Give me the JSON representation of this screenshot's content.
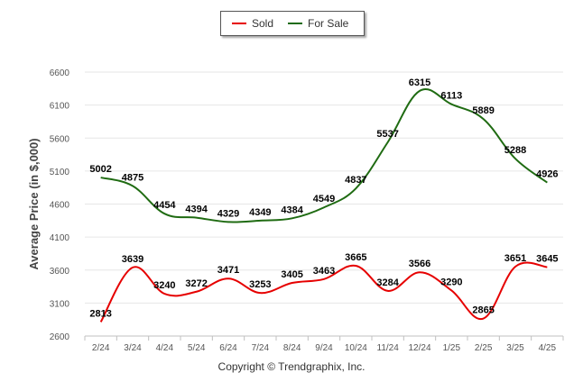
{
  "chart_data": {
    "type": "line",
    "title": "",
    "xlabel": "",
    "ylabel": "Average Price (in $,000)",
    "categories": [
      "2/24",
      "3/24",
      "4/24",
      "5/24",
      "6/24",
      "7/24",
      "8/24",
      "9/24",
      "10/24",
      "11/24",
      "12/24",
      "1/25",
      "2/25",
      "3/25",
      "4/25"
    ],
    "series": [
      {
        "name": "Sold",
        "color": "#e60000",
        "values": [
          2813,
          3639,
          3240,
          3272,
          3471,
          3253,
          3405,
          3463,
          3665,
          3284,
          3566,
          3290,
          2865,
          3651,
          3645
        ]
      },
      {
        "name": "For Sale",
        "color": "#1f6b12",
        "values": [
          5002,
          4875,
          4454,
          4394,
          4329,
          4349,
          4384,
          4549,
          4837,
          5537,
          6315,
          6113,
          5889,
          5288,
          4926
        ]
      }
    ],
    "y_ticks": [
      2600,
      3100,
      3600,
      4100,
      4600,
      5100,
      5600,
      6100,
      6600
    ],
    "ylim": [
      2600,
      6600
    ],
    "grid": true,
    "legend_position": "top-center"
  },
  "legend": {
    "sold_label": "Sold",
    "for_sale_label": "For Sale"
  },
  "footer": "Copyright © Trendgraphix, Inc."
}
